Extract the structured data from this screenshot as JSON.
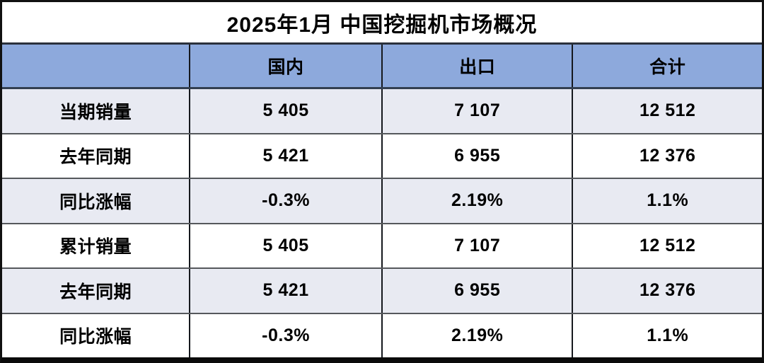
{
  "title": "2025年1月 中国挖掘机市场概况",
  "colors": {
    "header_bg": "#8DA9DC",
    "shaded_row_bg": "#E8EAF2",
    "row_bg": "#FFFFFF",
    "outer_border": "#111111",
    "column_divider": "#15181d",
    "row_divider": "#55585c",
    "header_divider": "#333f50",
    "text": "#000000"
  },
  "chart_data": {
    "type": "table",
    "title": "2025年1月 中国挖掘机市场概况",
    "columns": [
      "",
      "国内",
      "出口",
      "合计"
    ],
    "rows": [
      {
        "label": "当期销量",
        "values": [
          "5 405",
          "7 107",
          "12 512"
        ]
      },
      {
        "label": "去年同期",
        "values": [
          "5 421",
          "6 955",
          "12 376"
        ]
      },
      {
        "label": "同比涨幅",
        "values": [
          "-0.3%",
          "2.19%",
          "1.1%"
        ]
      },
      {
        "label": "累计销量",
        "values": [
          "5 405",
          "7 107",
          "12 512"
        ]
      },
      {
        "label": "去年同期",
        "values": [
          "5 421",
          "6 955",
          "12 376"
        ]
      },
      {
        "label": "同比涨幅",
        "values": [
          "-0.3%",
          "2.19%",
          "1.1%"
        ]
      }
    ]
  }
}
